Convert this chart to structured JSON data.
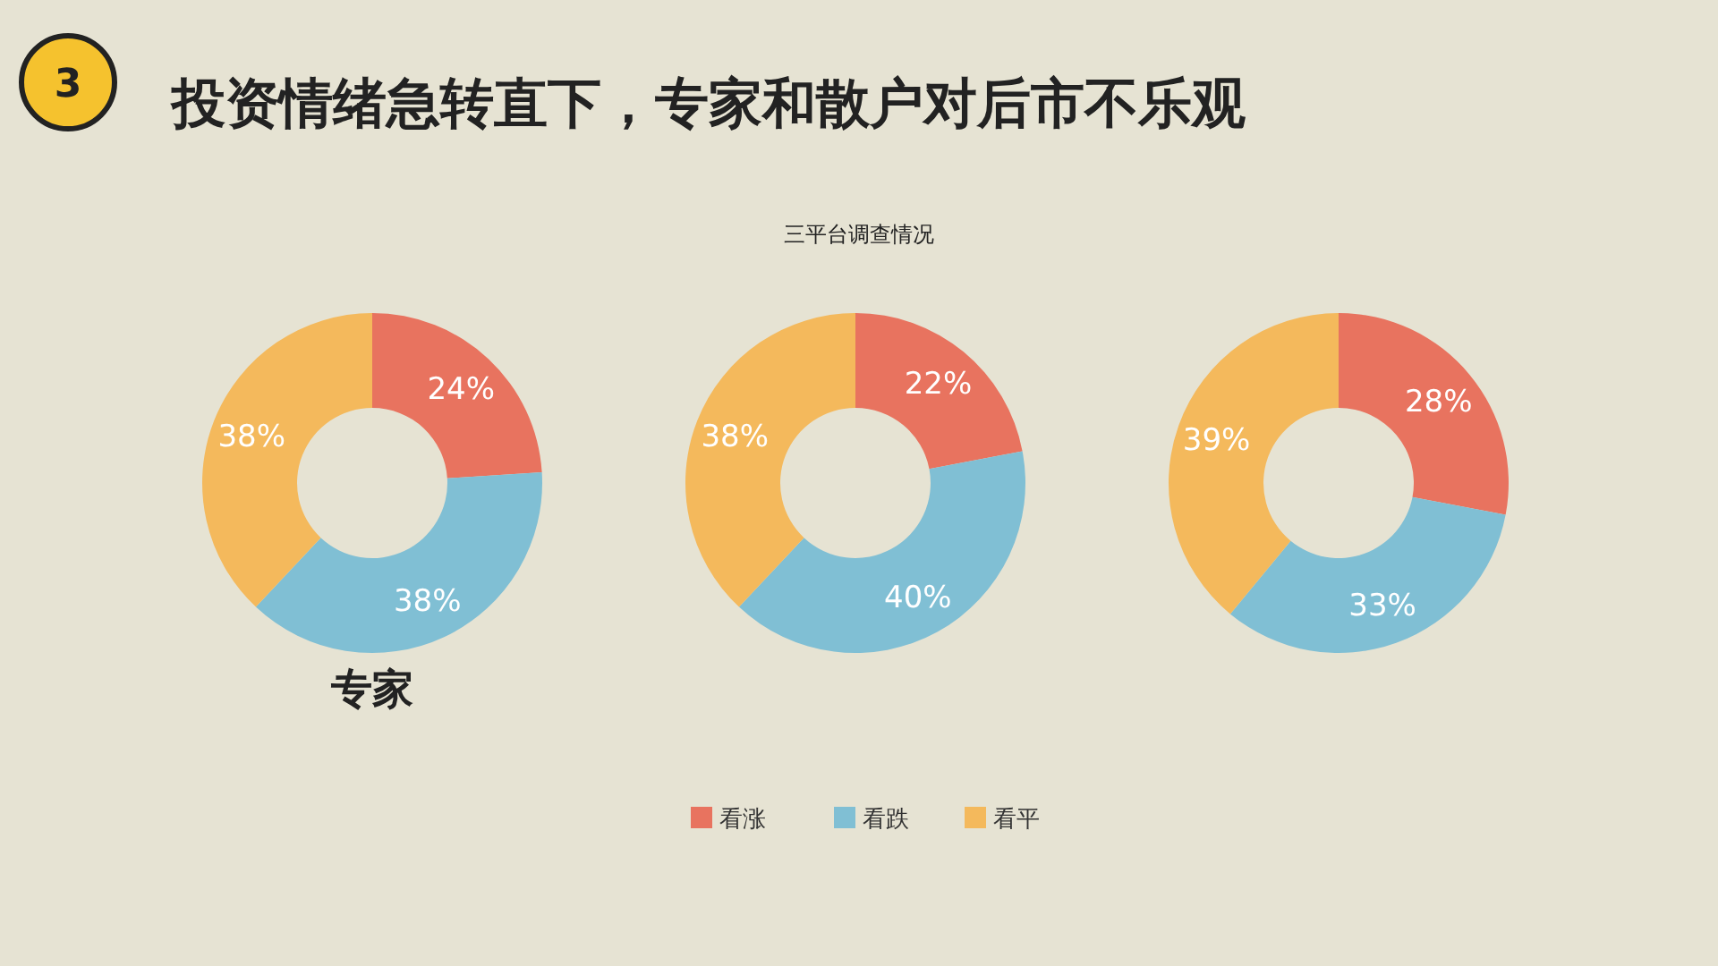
{
  "chart_data": [
    {
      "type": "donut",
      "title": "专家",
      "categories": [
        null,
        null,
        null
      ],
      "values": [
        24,
        38,
        38
      ],
      "value_labels": [
        "24%",
        "38%",
        "38%"
      ],
      "colors": [
        "#e8735f",
        "#80bfd4",
        "#f4b95c"
      ],
      "annotations": [
        "3",
        "投资情绪急转直下，专家和散户对后市不乐观",
        "三平台调查情况"
      ]
    },
    {
      "type": "donut",
      "categories": [
        "看涨",
        "看跌",
        "看平"
      ],
      "values": [
        22,
        40,
        38
      ],
      "value_labels": [
        "22%",
        "40%",
        "38%"
      ],
      "colors": [
        "#e8735f",
        "#80bfd4",
        "#f4b95c"
      ],
      "legend": "bottom"
    },
    {
      "type": "donut",
      "categories": [
        null,
        null,
        null
      ],
      "values": [
        28,
        33,
        39
      ],
      "value_labels": [
        "28%",
        "33%",
        "39%"
      ],
      "colors": [
        "#e8735f",
        "#80bfd4",
        "#f4b95c"
      ]
    }
  ]
}
